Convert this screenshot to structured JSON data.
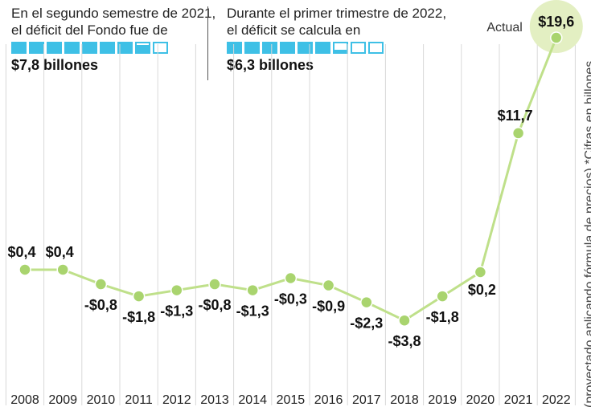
{
  "info": [
    {
      "lines": [
        "En el segundo semestre de 2021,",
        "el déficit del Fondo fue de"
      ],
      "amount": "$7,8 billones",
      "boxes": {
        "total": 9,
        "filled": 7.8
      }
    },
    {
      "lines": [
        "Durante el primer trimestre de 2022,",
        "el déficit se calcula en"
      ],
      "amount": "$6,3 billones",
      "boxes": {
        "total": 9,
        "filled": 6.3
      }
    }
  ],
  "side_note": "(proyectado aplicando fórmula de precios)  *Cifras en billones",
  "actual_label": "Actual",
  "colors": {
    "line": "#bfe08a",
    "point": "#a9d46e",
    "highlight": "#e3efc2",
    "box": "#3ec0e6"
  },
  "chart_data": {
    "type": "line",
    "x": [
      "2008",
      "2009",
      "2010",
      "2011",
      "2012",
      "2013",
      "2014",
      "2015",
      "2016",
      "2017",
      "2018",
      "2019",
      "2020",
      "2021",
      "2022"
    ],
    "y": [
      0.4,
      0.4,
      -0.8,
      -1.8,
      -1.3,
      -0.8,
      -1.3,
      -0.3,
      -0.9,
      -2.3,
      -3.8,
      -1.8,
      0.2,
      11.7,
      19.6
    ],
    "labels": [
      "$0,4",
      "$0,4",
      "-$0,8",
      "-$1,8",
      "-$1,3",
      "-$0,8",
      "-$1,3",
      "-$0,3",
      "-$0,9",
      "-$2,3",
      "-$3,8",
      "-$1,8",
      "$0,2",
      "$11,7",
      "$19,6"
    ],
    "highlight_index": 14,
    "grid": "vertical separators",
    "legend": "none"
  }
}
